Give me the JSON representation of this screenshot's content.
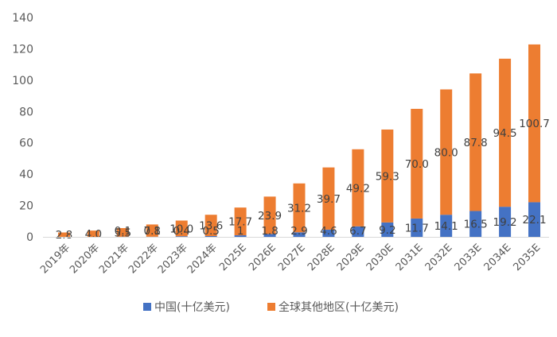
{
  "chart_data": {
    "type": "bar",
    "stacked": true,
    "title": "",
    "xlabel": "",
    "ylabel": "",
    "ylim": [
      0,
      140
    ],
    "yticks": [
      0,
      20,
      40,
      60,
      80,
      100,
      120,
      140
    ],
    "grid": false,
    "legend_position": "bottom",
    "categories": [
      "2019年",
      "2020年",
      "2021年",
      "2022年",
      "2023年",
      "2024年",
      "2025E",
      "2026E",
      "2027E",
      "2028E",
      "2029E",
      "2030E",
      "2031E",
      "2032E",
      "2033E",
      "2034E",
      "2035E"
    ],
    "series": [
      {
        "name": "中国(十亿美元)",
        "color": "#4472C4",
        "values": [
          0,
          0,
          0.1,
          0.1,
          0.4,
          0.5,
          1,
          1.8,
          2.9,
          4.6,
          6.7,
          9.2,
          11.7,
          14.1,
          16.5,
          19.2,
          22.1
        ],
        "labels": [
          "",
          "",
          "0.1",
          "0.1",
          "0.4",
          "0.5",
          "1",
          "1.8",
          "2.9",
          "4.6",
          "6.7",
          "9.2",
          "11.7",
          "14.1",
          "16.5",
          "19.2",
          "22.1"
        ]
      },
      {
        "name": "全球其他地区(十亿美元)",
        "color": "#ED7D31",
        "values": [
          2.8,
          4.0,
          5.5,
          7.8,
          10.0,
          13.6,
          17.7,
          23.9,
          31.2,
          39.7,
          49.2,
          59.3,
          70.0,
          80.0,
          87.8,
          94.5,
          100.7
        ],
        "labels": [
          "2.8",
          "4.0",
          "5.5",
          "7.8",
          "10.0",
          "13.6",
          "17.7",
          "23.9",
          "31.2",
          "39.7",
          "49.2",
          "59.3",
          "70.0",
          "80.0",
          "87.8",
          "94.5",
          "100.7"
        ]
      }
    ]
  }
}
